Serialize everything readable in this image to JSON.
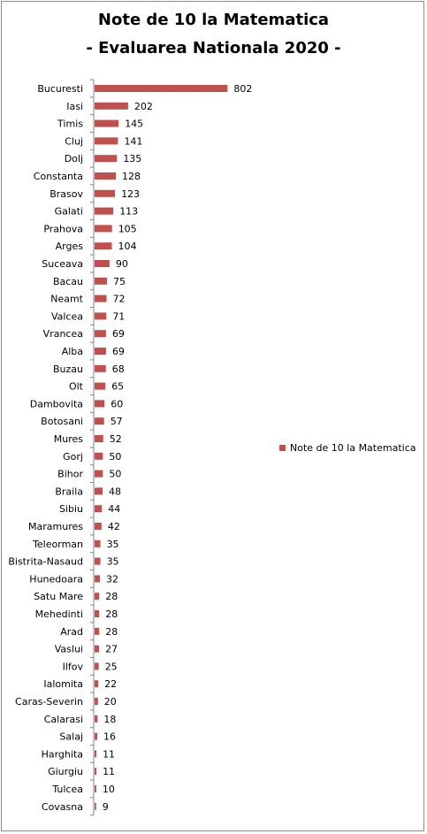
{
  "chart_data": {
    "type": "bar",
    "orientation": "horizontal",
    "title_line1": "Note de 10 la Matematica",
    "title_line2": "- Evaluarea Nationala 2020 -",
    "legend_position": "right",
    "grid": false,
    "bar_color": "#c0504d",
    "xlim": [
      0,
      850
    ],
    "series": [
      {
        "name": "Note de 10 la Matematica",
        "values": [
          802,
          202,
          145,
          141,
          135,
          128,
          123,
          113,
          105,
          104,
          90,
          75,
          72,
          71,
          69,
          69,
          68,
          65,
          60,
          57,
          52,
          50,
          50,
          48,
          44,
          42,
          35,
          35,
          32,
          28,
          28,
          28,
          27,
          25,
          22,
          20,
          18,
          16,
          11,
          11,
          10,
          9
        ]
      }
    ],
    "categories": [
      "Bucuresti",
      "Iasi",
      "Timis",
      "Cluj",
      "Dolj",
      "Constanta",
      "Brasov",
      "Galati",
      "Prahova",
      "Arges",
      "Suceava",
      "Bacau",
      "Neamt",
      "Valcea",
      "Vrancea",
      "Alba",
      "Buzau",
      "Olt",
      "Dambovita",
      "Botosani",
      "Mures",
      "Gorj",
      "Bihor",
      "Braila",
      "Sibiu",
      "Maramures",
      "Teleorman",
      "Bistrita-Nasaud",
      "Hunedoara",
      "Satu Mare",
      "Mehedinti",
      "Arad",
      "Vaslui",
      "Ilfov",
      "Ialomita",
      "Caras-Severin",
      "Calarasi",
      "Salaj",
      "Harghita",
      "Giurgiu",
      "Tulcea",
      "Covasna"
    ]
  }
}
